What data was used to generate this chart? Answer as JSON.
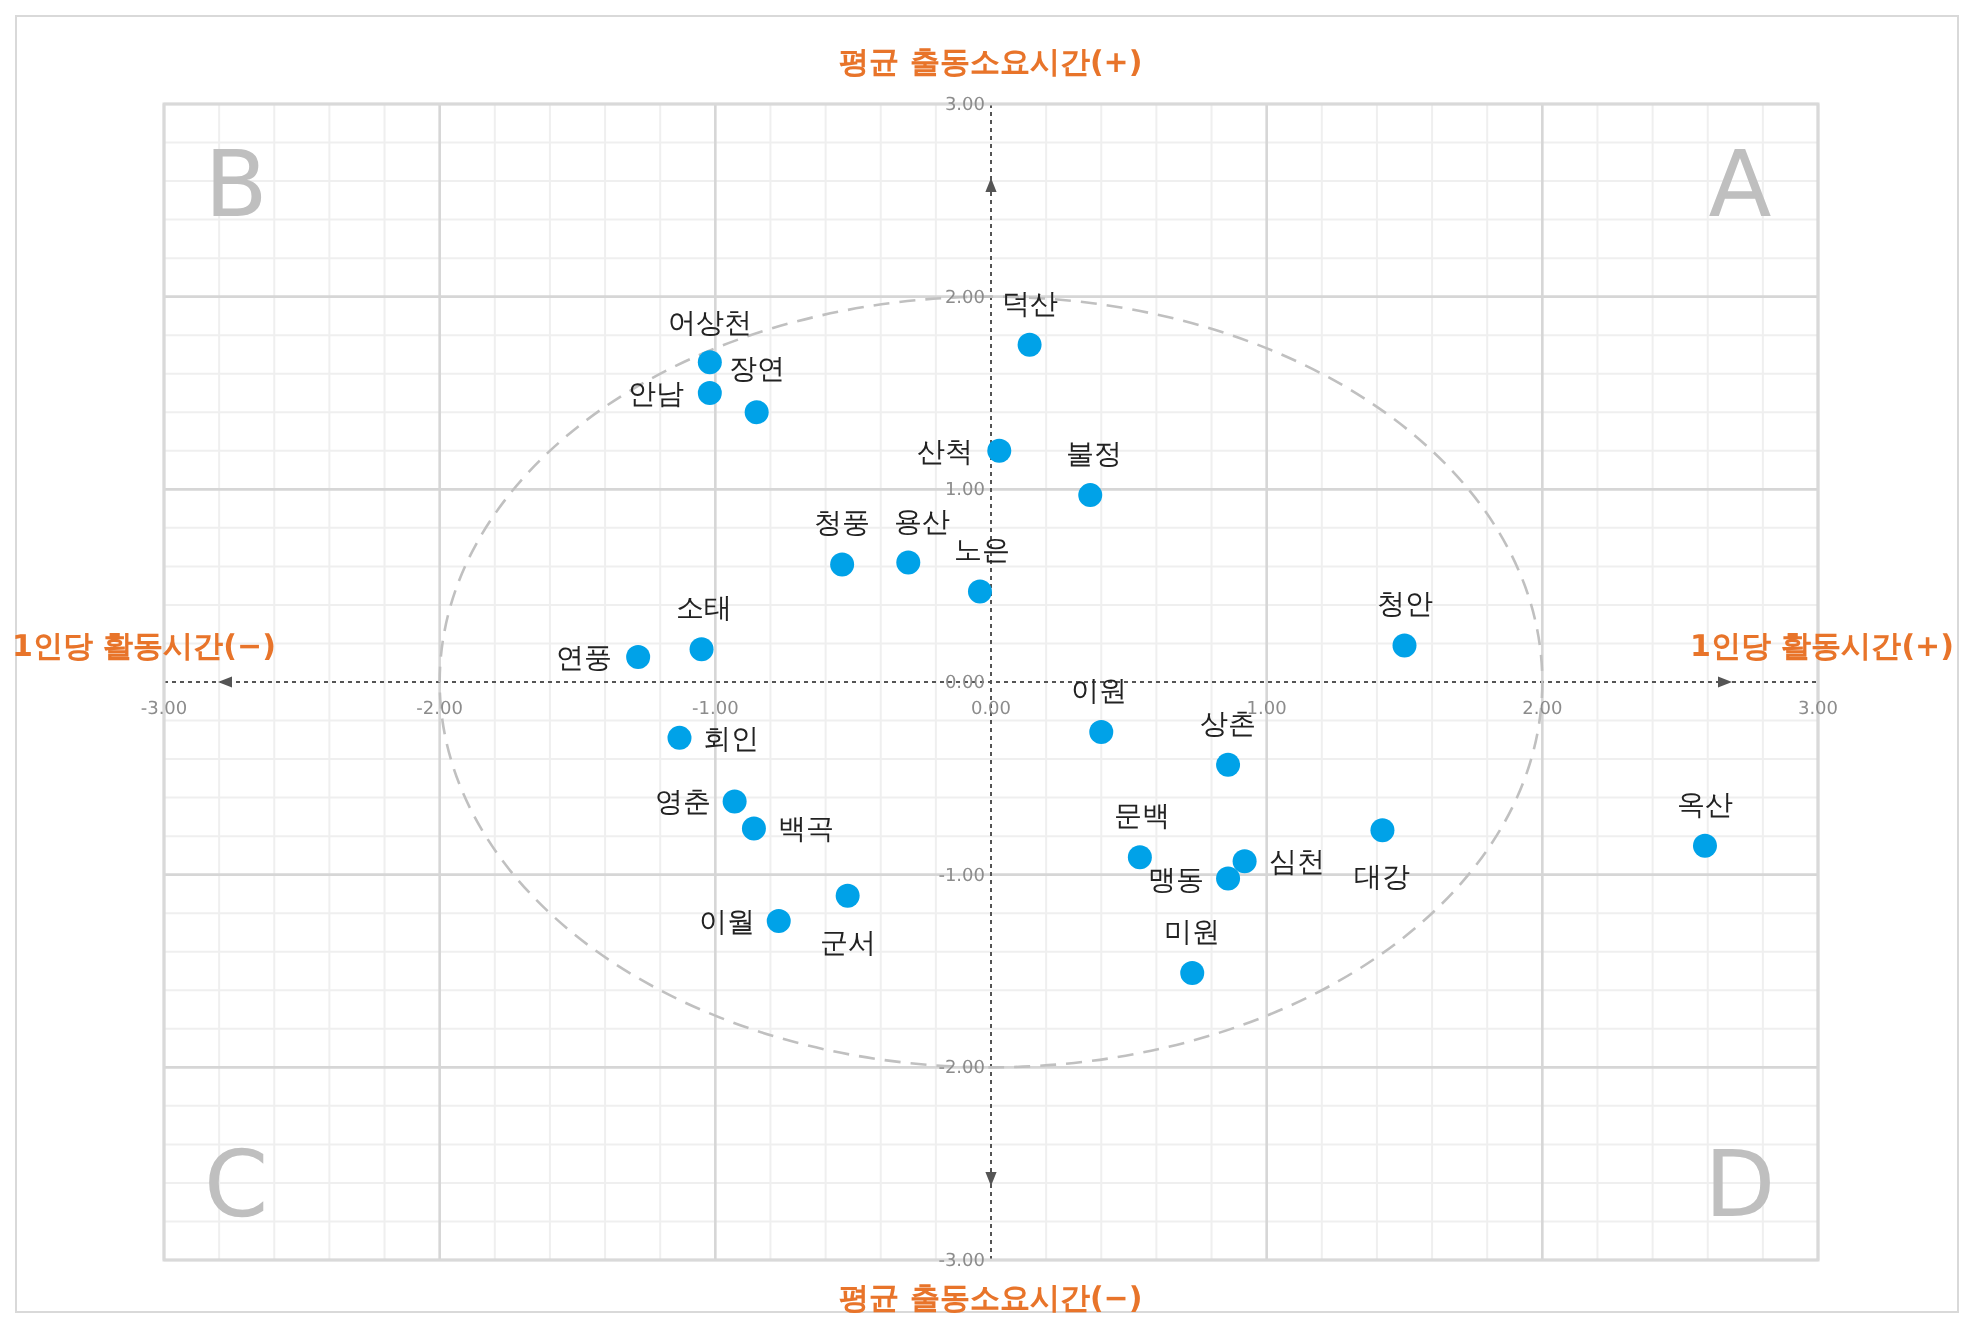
{
  "chart_data": {
    "type": "scatter",
    "series": [
      {
        "type": "scatter",
        "color": "#00a2e8",
        "marker": "circle",
        "x": [
          -1.02,
          -1.02,
          -0.85,
          0.14,
          0.03,
          0.36,
          -0.54,
          -0.3,
          -0.04,
          -1.05,
          -1.28,
          1.5,
          0.4,
          0.86,
          -1.13,
          -0.93,
          -0.86,
          0.54,
          0.86,
          0.92,
          1.42,
          2.59,
          0.73,
          -0.77,
          -0.52
        ],
        "values": [
          1.66,
          1.5,
          1.4,
          1.75,
          1.2,
          0.97,
          0.61,
          0.62,
          0.47,
          0.17,
          0.13,
          0.19,
          -0.26,
          -0.43,
          -0.29,
          -0.62,
          -0.76,
          -0.91,
          -1.02,
          -0.93,
          -0.77,
          -0.85,
          -1.51,
          -1.24,
          -1.11
        ]
      }
    ],
    "xlim": [
      -3,
      3
    ],
    "ylim": [
      -3,
      3
    ],
    "xticks": [
      {
        "value": -3,
        "label": "-3.00"
      },
      {
        "value": -2,
        "label": "-2.00"
      },
      {
        "value": -1,
        "label": "-1.00"
      },
      {
        "value": 0,
        "label": "0.00"
      },
      {
        "value": 1,
        "label": "1.00"
      },
      {
        "value": 2,
        "label": "2.00"
      },
      {
        "value": 3,
        "label": "3.00"
      }
    ],
    "yticks": [
      {
        "value": -3,
        "label": "-3.00"
      },
      {
        "value": -2,
        "label": "-2.00"
      },
      {
        "value": -1,
        "label": "-1.00"
      },
      {
        "value": 0,
        "label": "0.00"
      },
      {
        "value": 1,
        "label": "1.00"
      },
      {
        "value": 2,
        "label": "2.00"
      },
      {
        "value": 3,
        "label": "3.00"
      }
    ],
    "grid": true,
    "annotations": [
      "평균 출동소요시간(+)",
      "평균 출동소요시간(−)",
      "1인당 활동시간(−)",
      "1인당 활동시간(+)",
      "A",
      "B",
      "C",
      "D",
      {
        "text": "어상천",
        "x": -1.02,
        "y": 1.66
      },
      {
        "text": "안남",
        "x": -1.02,
        "y": 1.5
      },
      {
        "text": "장연",
        "x": -0.85,
        "y": 1.4
      },
      {
        "text": "덕산",
        "x": 0.14,
        "y": 1.75
      },
      {
        "text": "산척",
        "x": 0.03,
        "y": 1.2
      },
      {
        "text": "불정",
        "x": 0.36,
        "y": 0.97
      },
      {
        "text": "청풍",
        "x": -0.54,
        "y": 0.61
      },
      {
        "text": "용산",
        "x": -0.3,
        "y": 0.62
      },
      {
        "text": "노은",
        "x": -0.04,
        "y": 0.47
      },
      {
        "text": "소태",
        "x": -1.05,
        "y": 0.17
      },
      {
        "text": "연풍",
        "x": -1.28,
        "y": 0.13
      },
      {
        "text": "청안",
        "x": 1.5,
        "y": 0.19
      },
      {
        "text": "이원",
        "x": 0.4,
        "y": -0.26
      },
      {
        "text": "상촌",
        "x": 0.86,
        "y": -0.43
      },
      {
        "text": "회인",
        "x": -1.13,
        "y": -0.29
      },
      {
        "text": "영춘",
        "x": -0.93,
        "y": -0.62
      },
      {
        "text": "백곡",
        "x": -0.86,
        "y": -0.76
      },
      {
        "text": "문백",
        "x": 0.54,
        "y": -0.91
      },
      {
        "text": "맹동",
        "x": 0.86,
        "y": -1.02
      },
      {
        "text": "심천",
        "x": 0.92,
        "y": -0.93
      },
      {
        "text": "대강",
        "x": 1.42,
        "y": -0.77
      },
      {
        "text": "옥산",
        "x": 2.59,
        "y": -0.85
      },
      {
        "text": "미원",
        "x": 0.73,
        "y": -1.51
      },
      {
        "text": "이월",
        "x": -0.77,
        "y": -1.24
      },
      {
        "text": "군서",
        "x": -0.52,
        "y": -1.11
      }
    ]
  }
}
